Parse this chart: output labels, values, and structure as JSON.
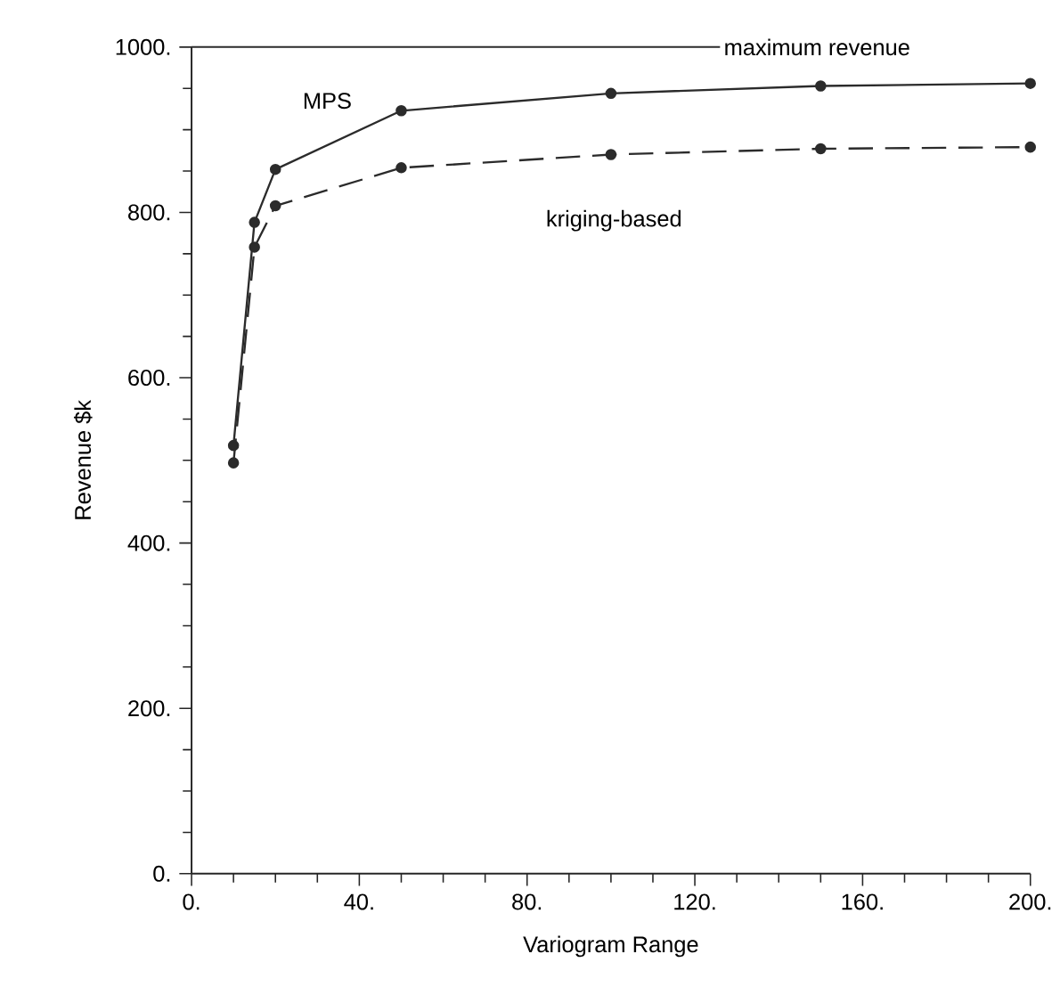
{
  "chart_data": {
    "type": "line",
    "xlabel": "Variogram Range",
    "ylabel": "Revenue $k",
    "x": [
      10,
      15,
      20,
      50,
      100,
      150,
      200
    ],
    "series": [
      {
        "name": "MPS",
        "color": "#2b2b2b",
        "line_style": "solid",
        "values": [
          518,
          788,
          852,
          923,
          944,
          953,
          956
        ]
      },
      {
        "name": "kriging-based",
        "color": "#2b2b2b",
        "line_style": "dashed",
        "values": [
          497,
          758,
          808,
          854,
          870,
          877,
          879
        ]
      }
    ],
    "xlim": [
      0,
      200
    ],
    "ylim": [
      0,
      1000
    ],
    "xticks": [
      {
        "value": 0,
        "label": "0."
      },
      {
        "value": 40,
        "label": "40."
      },
      {
        "value": 80,
        "label": "80."
      },
      {
        "value": 120,
        "label": "120."
      },
      {
        "value": 160,
        "label": "160."
      },
      {
        "value": 200,
        "label": "200."
      }
    ],
    "yticks": [
      {
        "value": 0,
        "label": "0."
      },
      {
        "value": 200,
        "label": "200."
      },
      {
        "value": 400,
        "label": "400."
      },
      {
        "value": 600,
        "label": "600."
      },
      {
        "value": 800,
        "label": "800."
      },
      {
        "value": 1000,
        "label": "1000."
      }
    ],
    "ref_lines": [
      {
        "axis": "y",
        "value": 1000,
        "label": "maximum revenue",
        "color": "#2b2b2b"
      }
    ],
    "marker": "circle",
    "grid": false,
    "legend": false
  }
}
